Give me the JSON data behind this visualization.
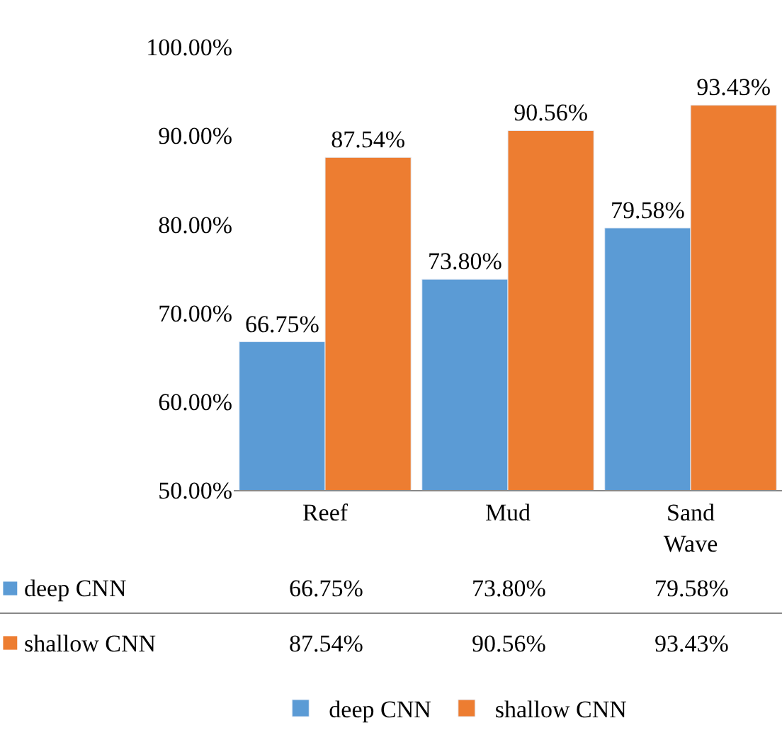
{
  "chart_data": {
    "type": "bar",
    "categories": [
      "Reef",
      "Mud",
      "Sand Wave"
    ],
    "series": [
      {
        "name": "deep CNN",
        "color": "#5b9bd5",
        "values": [
          66.75,
          73.8,
          79.58
        ],
        "value_labels": [
          "66.75%",
          "73.80%",
          "79.58%"
        ]
      },
      {
        "name": "shallow CNN",
        "color": "#ed7d31",
        "values": [
          87.54,
          90.56,
          93.43
        ],
        "value_labels": [
          "87.54%",
          "90.56%",
          "93.43%"
        ]
      }
    ],
    "ylim": [
      50,
      100
    ],
    "yticks": [
      {
        "value": 50,
        "label": "50.00%"
      },
      {
        "value": 60,
        "label": "60.00%"
      },
      {
        "value": 70,
        "label": "70.00%"
      },
      {
        "value": 80,
        "label": "80.00%"
      },
      {
        "value": 90,
        "label": "90.00%"
      },
      {
        "value": 100,
        "label": "100.00%"
      }
    ],
    "legend": "bottom"
  }
}
